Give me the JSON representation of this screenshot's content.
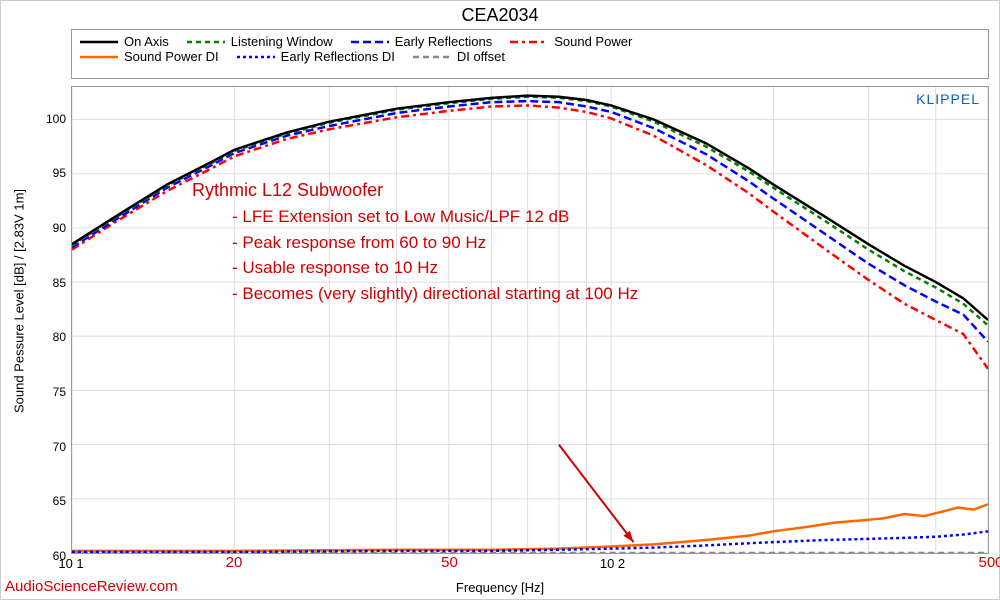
{
  "title": "CEA2034",
  "watermark": "KLIPPEL",
  "attribution": "AudioScienceReview.com",
  "axes": {
    "xlabel": "Frequency [Hz]",
    "ylabel": "Sound Pessure Level [dB]  /  [2.83V 1m]",
    "xlim": [
      10,
      500
    ],
    "ylim": [
      60,
      103
    ],
    "xscale": "log",
    "yticks": [
      60,
      65,
      70,
      75,
      80,
      85,
      90,
      95,
      100
    ],
    "xticks_major": [
      10,
      100
    ],
    "xticks_major_labels": [
      "10 1",
      "10 2"
    ],
    "xticks_red": [
      20,
      50,
      500
    ],
    "xticks_red_labels": [
      "20",
      "50",
      "500"
    ],
    "background_color": "#ffffff",
    "border_color": "#999999",
    "grid_color": "#dddddd",
    "tick_fontsize": 12,
    "label_fontsize": 13,
    "title_fontsize": 18
  },
  "legend": {
    "border_color": "#999999",
    "fontsize": 13,
    "items": [
      {
        "label": "On Axis",
        "color": "#000000",
        "dash": "solid",
        "width": 2.5
      },
      {
        "label": "Listening Window",
        "color": "#008000",
        "dash": "5,4",
        "width": 2.5
      },
      {
        "label": "Early Reflections",
        "color": "#0000ff",
        "dash": "8,4",
        "width": 2.5
      },
      {
        "label": "Sound Power",
        "color": "#ff0000",
        "dash": "8,4,3,4",
        "width": 2.5
      },
      {
        "label": "Sound Power DI",
        "color": "#ff6600",
        "dash": "solid",
        "width": 2.5
      },
      {
        "label": "Early Reflections DI",
        "color": "#0000ff",
        "dash": "3,3",
        "width": 2.5
      },
      {
        "label": "DI offset",
        "color": "#888888",
        "dash": "6,4",
        "width": 2.5
      }
    ]
  },
  "annotation": {
    "title": "Rythmic L12 Subwoofer",
    "lines": [
      "- LFE Extension set to Low Music/LPF 12 dB",
      "- Peak response from 60 to 90 Hz",
      "- Usable response to 10 Hz",
      "- Becomes (very slightly) directional starting at 100 Hz"
    ],
    "color": "#d00000",
    "fontsize": 17,
    "title_fontsize": 18,
    "arrow": {
      "from_x": 80,
      "from_y": 70,
      "to_x": 110,
      "to_y": 61
    }
  },
  "series": {
    "on_axis": {
      "color": "#000000",
      "dash": "solid",
      "width": 2.5,
      "x": [
        10,
        12,
        15,
        18,
        20,
        25,
        30,
        40,
        50,
        60,
        70,
        80,
        90,
        100,
        120,
        150,
        180,
        200,
        250,
        300,
        350,
        400,
        450,
        500
      ],
      "y": [
        88.5,
        91,
        94,
        96,
        97.2,
        98.8,
        99.8,
        101,
        101.6,
        102,
        102.2,
        102.1,
        101.8,
        101.3,
        100,
        97.8,
        95.5,
        94,
        91,
        88.5,
        86.5,
        85,
        83.5,
        81.5
      ]
    },
    "listening_window": {
      "color": "#008000",
      "dash": "5,4",
      "width": 2.5,
      "x": [
        10,
        12,
        15,
        18,
        20,
        25,
        30,
        40,
        50,
        60,
        70,
        80,
        90,
        100,
        120,
        150,
        180,
        200,
        250,
        300,
        350,
        400,
        450,
        500
      ],
      "y": [
        88.4,
        90.9,
        93.9,
        95.9,
        97.1,
        98.7,
        99.7,
        100.9,
        101.5,
        101.9,
        102.1,
        102.0,
        101.7,
        101.2,
        99.8,
        97.5,
        95.2,
        93.7,
        90.6,
        88.0,
        86.0,
        84.5,
        83.0,
        81.0
      ]
    },
    "early_reflections": {
      "color": "#0000ff",
      "dash": "8,4",
      "width": 2.5,
      "x": [
        10,
        12,
        15,
        18,
        20,
        25,
        30,
        40,
        50,
        60,
        70,
        80,
        90,
        100,
        120,
        150,
        180,
        200,
        250,
        300,
        350,
        400,
        450,
        500
      ],
      "y": [
        88.2,
        90.7,
        93.7,
        95.7,
        96.9,
        98.5,
        99.4,
        100.6,
        101.2,
        101.6,
        101.7,
        101.6,
        101.2,
        100.7,
        99.2,
        96.8,
        94.3,
        92.7,
        89.4,
        86.7,
        84.7,
        83.2,
        82.0,
        79.5
      ]
    },
    "sound_power": {
      "color": "#ff0000",
      "dash": "8,4,3,4",
      "width": 2.5,
      "x": [
        10,
        12,
        15,
        18,
        20,
        25,
        30,
        40,
        50,
        60,
        70,
        80,
        90,
        100,
        120,
        150,
        180,
        200,
        250,
        300,
        350,
        400,
        450,
        500
      ],
      "y": [
        88.0,
        90.5,
        93.4,
        95.4,
        96.6,
        98.2,
        99.1,
        100.2,
        100.8,
        101.2,
        101.3,
        101.1,
        100.7,
        100.1,
        98.5,
        95.8,
        93.2,
        91.5,
        88.0,
        85.2,
        83.0,
        81.5,
        80.2,
        77.0
      ]
    },
    "sound_power_di": {
      "color": "#ff6600",
      "dash": "solid",
      "width": 2.5,
      "x": [
        10,
        20,
        40,
        60,
        80,
        100,
        120,
        150,
        180,
        200,
        230,
        260,
        290,
        320,
        350,
        380,
        410,
        440,
        470,
        500
      ],
      "y": [
        60.2,
        60.2,
        60.3,
        60.3,
        60.4,
        60.6,
        60.8,
        61.2,
        61.6,
        62.0,
        62.4,
        62.8,
        63.0,
        63.2,
        63.6,
        63.4,
        63.8,
        64.2,
        64.0,
        64.5
      ]
    },
    "early_reflections_di": {
      "color": "#0000ff",
      "dash": "3,3",
      "width": 2.5,
      "x": [
        10,
        20,
        40,
        60,
        80,
        100,
        120,
        150,
        180,
        200,
        250,
        300,
        350,
        400,
        450,
        500
      ],
      "y": [
        60.1,
        60.1,
        60.2,
        60.2,
        60.3,
        60.4,
        60.5,
        60.7,
        60.9,
        61.0,
        61.2,
        61.3,
        61.4,
        61.5,
        61.7,
        62.0
      ]
    },
    "di_offset": {
      "color": "#888888",
      "dash": "6,4",
      "width": 2.5,
      "x": [
        10,
        500
      ],
      "y": [
        60,
        60
      ]
    }
  }
}
